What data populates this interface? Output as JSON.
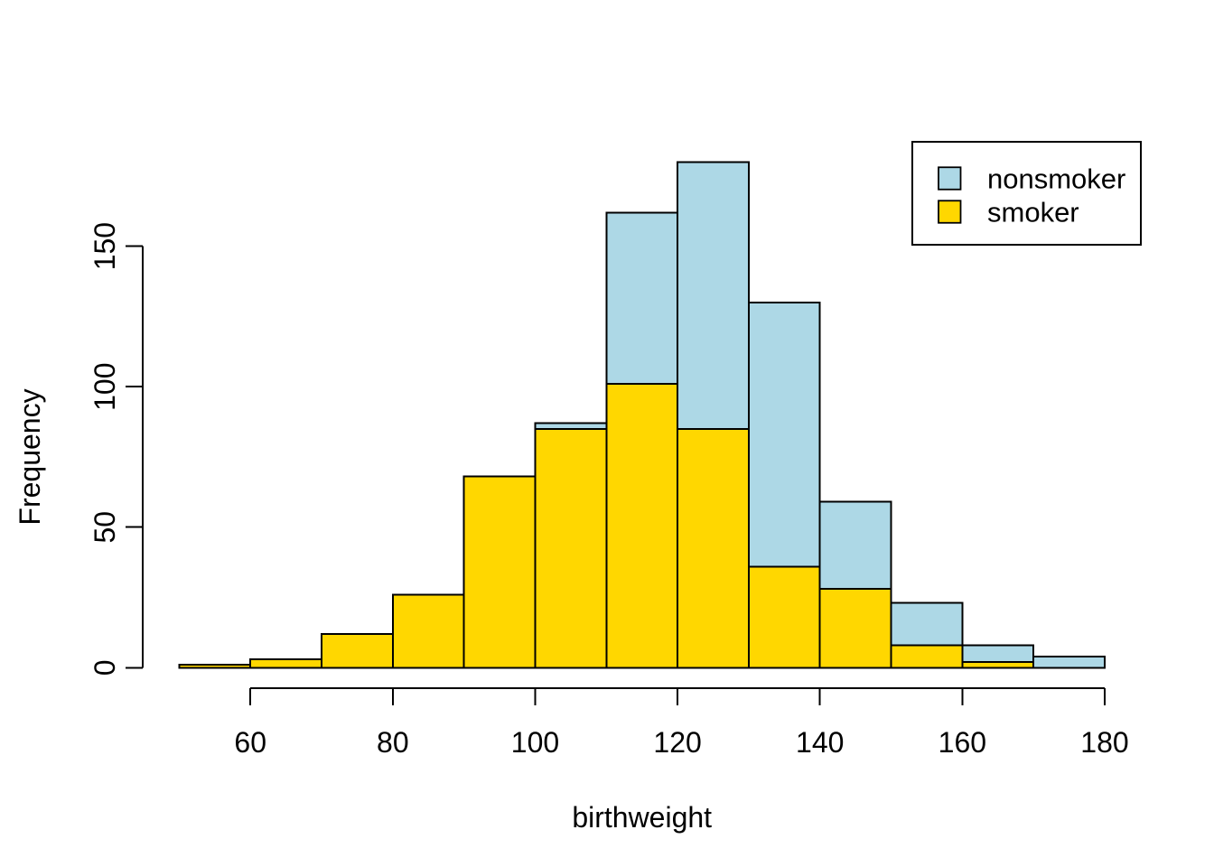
{
  "figure": {
    "background_color": "#FFFFFF",
    "axis_color": "#000000"
  },
  "chart_data": {
    "type": "bar",
    "subtype": "overlaid-histogram",
    "title": "",
    "xlabel": "birthweight",
    "ylabel": "Frequency",
    "bin_edges": [
      50,
      60,
      70,
      80,
      90,
      100,
      110,
      120,
      130,
      140,
      150,
      160,
      170,
      180
    ],
    "series": [
      {
        "name": "nonsmoker",
        "color": "#ADD8E6",
        "draw_order": "behind",
        "values": [
          null,
          null,
          null,
          null,
          null,
          87,
          162,
          180,
          130,
          59,
          23,
          8,
          4
        ],
        "note": "null = bar fully hidden behind the smoker bar drawn in front"
      },
      {
        "name": "smoker",
        "color": "#FFD700",
        "draw_order": "front",
        "values": [
          1,
          3,
          12,
          26,
          68,
          85,
          101,
          85,
          36,
          28,
          8,
          2,
          0
        ]
      }
    ],
    "bar_border_color": "#000000",
    "xlim": [
      50,
      180
    ],
    "ylim": [
      0,
      150
    ],
    "x_axis_span": [
      60,
      180
    ],
    "x_ticks": [
      60,
      80,
      100,
      120,
      140,
      160,
      180
    ],
    "x_tick_labels": [
      "60",
      "80",
      "100",
      "120",
      "140",
      "160",
      "180"
    ],
    "y_ticks": [
      0,
      50,
      100,
      150
    ],
    "y_tick_labels": [
      "0",
      "50",
      "100",
      "150"
    ],
    "grid": false,
    "legend": {
      "position": "top-right",
      "border_color": "#000000",
      "background": "#FFFFFF",
      "entries": [
        {
          "label": "nonsmoker",
          "color": "#ADD8E6"
        },
        {
          "label": "smoker",
          "color": "#FFD700"
        }
      ]
    }
  }
}
